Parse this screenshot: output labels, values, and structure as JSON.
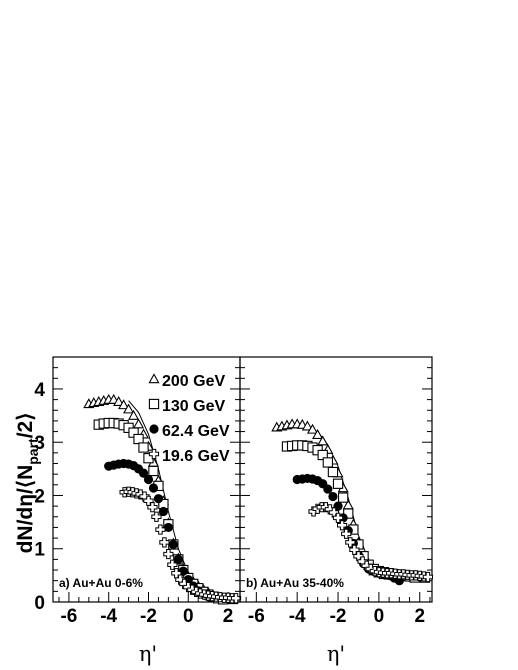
{
  "chart_data": [
    {
      "type": "scatter",
      "panel": "a",
      "annotation": "a)  Au+Au 0-6%",
      "xlabel": "η'",
      "ylabel": "dN/dη/⟨N_part/2⟩",
      "xlim": [
        -6.8,
        2.6
      ],
      "ylim": [
        0,
        4.6
      ],
      "xticks": [
        -6,
        -4,
        -2,
        0,
        2
      ],
      "yticks": [
        0,
        1,
        2,
        3,
        4
      ],
      "legend": {
        "position": "top-right",
        "entries": [
          {
            "label": "200 GeV",
            "marker": "triangle-open"
          },
          {
            "label": "130 GeV",
            "marker": "square-open"
          },
          {
            "label": "62.4 GeV",
            "marker": "circle-filled"
          },
          {
            "label": "19.6 GeV",
            "marker": "cross-open"
          }
        ]
      },
      "series": [
        {
          "marker": "triangle-open",
          "x": [
            -5.0,
            -4.75,
            -4.5,
            -4.25,
            -4.0,
            -3.75,
            -3.5,
            -3.25,
            -3.0,
            -2.75,
            -2.5,
            -2.25,
            -2.0,
            -1.75,
            -1.5,
            -1.25,
            -1.0,
            -0.75,
            -0.5,
            -0.25,
            0.0,
            0.25,
            0.5,
            0.75,
            1.0,
            1.25,
            1.5,
            1.75,
            2.0,
            2.25
          ],
          "y": [
            3.72,
            3.74,
            3.76,
            3.78,
            3.8,
            3.8,
            3.76,
            3.7,
            3.62,
            3.5,
            3.34,
            3.15,
            2.92,
            2.62,
            2.28,
            1.9,
            1.48,
            1.1,
            0.82,
            0.62,
            0.48,
            0.38,
            0.3,
            0.24,
            0.18,
            0.13,
            0.1,
            0.07,
            0.05,
            0.04
          ]
        },
        {
          "marker": "square-open",
          "x": [
            -4.5,
            -4.25,
            -4.0,
            -3.75,
            -3.5,
            -3.25,
            -3.0,
            -2.75,
            -2.5,
            -2.25,
            -2.0,
            -1.75,
            -1.5,
            -1.25,
            -1.0,
            -0.75,
            -0.5,
            -0.25,
            0.0,
            0.25,
            0.5,
            0.75,
            1.0,
            1.25,
            1.5,
            1.75
          ],
          "y": [
            3.33,
            3.35,
            3.36,
            3.36,
            3.35,
            3.32,
            3.27,
            3.18,
            3.06,
            2.9,
            2.7,
            2.46,
            2.18,
            1.84,
            1.46,
            1.08,
            0.8,
            0.6,
            0.45,
            0.34,
            0.26,
            0.19,
            0.14,
            0.1,
            0.07,
            0.05
          ]
        },
        {
          "marker": "circle-filled",
          "x": [
            -4.0,
            -3.75,
            -3.5,
            -3.25,
            -3.0,
            -2.75,
            -2.5,
            -2.25,
            -2.0,
            -1.75,
            -1.5,
            -1.25,
            -1.0,
            -0.75,
            -0.5,
            -0.25,
            0.0,
            0.25,
            0.5,
            0.75,
            1.0
          ],
          "y": [
            2.55,
            2.57,
            2.59,
            2.6,
            2.59,
            2.56,
            2.5,
            2.42,
            2.3,
            2.14,
            1.94,
            1.7,
            1.4,
            1.08,
            0.8,
            0.58,
            0.42,
            0.3,
            0.21,
            0.15,
            0.1
          ]
        },
        {
          "marker": "cross-open",
          "x": [
            -3.2,
            -3.0,
            -2.8,
            -2.6,
            -2.4,
            -2.2,
            -2.0,
            -1.8,
            -1.6,
            -1.4,
            -1.2,
            -1.0,
            -0.8,
            -0.6,
            -0.4,
            -0.2,
            0.0,
            0.2,
            0.4,
            0.6,
            0.8,
            1.0,
            1.2,
            1.4,
            1.6,
            1.8,
            2.0,
            2.2,
            2.4
          ],
          "y": [
            2.06,
            2.07,
            2.06,
            2.04,
            2.02,
            1.98,
            1.9,
            1.78,
            1.6,
            1.36,
            1.12,
            0.9,
            0.7,
            0.54,
            0.42,
            0.34,
            0.28,
            0.23,
            0.19,
            0.16,
            0.14,
            0.12,
            0.11,
            0.1,
            0.09,
            0.08,
            0.08,
            0.07,
            0.07
          ]
        }
      ],
      "band": {
        "series": "200 GeV",
        "x": [
          -3.0,
          -2.5,
          -2.0,
          -1.5,
          -1.0,
          -0.5,
          0.0,
          0.5,
          1.0,
          1.5,
          2.0
        ],
        "y": [
          3.78,
          3.56,
          3.15,
          2.5,
          1.7,
          1.0,
          0.55,
          0.33,
          0.2,
          0.11,
          0.06
        ]
      }
    },
    {
      "type": "scatter",
      "panel": "b",
      "annotation": "b)  Au+Au 35-40%",
      "xlabel": "η'",
      "xlim": [
        -6.8,
        2.6
      ],
      "ylim": [
        0,
        4.6
      ],
      "xticks": [
        -6,
        -4,
        -2,
        0,
        2
      ],
      "series": [
        {
          "marker": "triangle-open",
          "x": [
            -5.0,
            -4.75,
            -4.5,
            -4.25,
            -4.0,
            -3.75,
            -3.5,
            -3.25,
            -3.0,
            -2.75,
            -2.5,
            -2.25,
            -2.0,
            -1.75,
            -1.5,
            -1.25,
            -1.0,
            -0.75,
            -0.5,
            -0.25,
            0.0,
            0.25,
            0.5,
            0.75,
            1.0,
            1.25,
            1.5,
            1.75,
            2.0,
            2.25
          ],
          "y": [
            3.28,
            3.3,
            3.32,
            3.34,
            3.34,
            3.33,
            3.3,
            3.24,
            3.14,
            3.02,
            2.86,
            2.66,
            2.42,
            2.14,
            1.82,
            1.46,
            1.12,
            0.86,
            0.68,
            0.58,
            0.54,
            0.51,
            0.5,
            0.49,
            0.48,
            0.48,
            0.47,
            0.46,
            0.45,
            0.44
          ]
        },
        {
          "marker": "square-open",
          "x": [
            -4.5,
            -4.25,
            -4.0,
            -3.75,
            -3.5,
            -3.25,
            -3.0,
            -2.75,
            -2.5,
            -2.25,
            -2.0,
            -1.75,
            -1.5,
            -1.25,
            -1.0,
            -0.75,
            -0.5,
            -0.25,
            0.0,
            0.25,
            0.5,
            0.75,
            1.0,
            1.25,
            1.5,
            1.75
          ],
          "y": [
            2.92,
            2.93,
            2.94,
            2.94,
            2.93,
            2.9,
            2.85,
            2.76,
            2.62,
            2.44,
            2.22,
            1.96,
            1.66,
            1.36,
            1.08,
            0.86,
            0.7,
            0.62,
            0.58,
            0.56,
            0.54,
            0.52,
            0.5,
            0.49,
            0.48,
            0.46
          ]
        },
        {
          "marker": "circle-filled",
          "x": [
            -4.0,
            -3.75,
            -3.5,
            -3.25,
            -3.0,
            -2.75,
            -2.5,
            -2.25,
            -2.0,
            -1.75,
            -1.5,
            -1.25,
            -1.0,
            -0.75,
            -0.5,
            -0.25,
            0.0,
            0.25,
            0.5,
            0.75,
            1.0
          ],
          "y": [
            2.3,
            2.31,
            2.32,
            2.31,
            2.28,
            2.22,
            2.12,
            1.98,
            1.8,
            1.58,
            1.34,
            1.1,
            0.88,
            0.72,
            0.62,
            0.58,
            0.54,
            0.52,
            0.5,
            0.45,
            0.4
          ]
        },
        {
          "marker": "cross-open",
          "x": [
            -3.2,
            -3.0,
            -2.8,
            -2.6,
            -2.4,
            -2.2,
            -2.0,
            -1.8,
            -1.6,
            -1.4,
            -1.2,
            -1.0,
            -0.8,
            -0.6,
            -0.4,
            -0.2,
            0.0,
            0.2,
            0.4,
            0.6,
            0.8,
            1.0,
            1.2,
            1.4,
            1.6,
            1.8,
            2.0,
            2.2,
            2.4
          ],
          "y": [
            1.7,
            1.75,
            1.78,
            1.78,
            1.74,
            1.68,
            1.58,
            1.44,
            1.28,
            1.12,
            0.98,
            0.86,
            0.76,
            0.68,
            0.62,
            0.58,
            0.56,
            0.55,
            0.54,
            0.54,
            0.53,
            0.52,
            0.52,
            0.51,
            0.5,
            0.5,
            0.49,
            0.48,
            0.47
          ]
        }
      ],
      "band": {
        "series": "200 GeV",
        "x": [
          -3.0,
          -2.5,
          -2.0,
          -1.5,
          -1.0,
          -0.5,
          0.0,
          0.5,
          1.0,
          1.5,
          2.0
        ],
        "y": [
          3.2,
          2.95,
          2.55,
          1.95,
          1.25,
          0.8,
          0.62,
          0.56,
          0.52,
          0.49,
          0.46
        ]
      }
    }
  ]
}
